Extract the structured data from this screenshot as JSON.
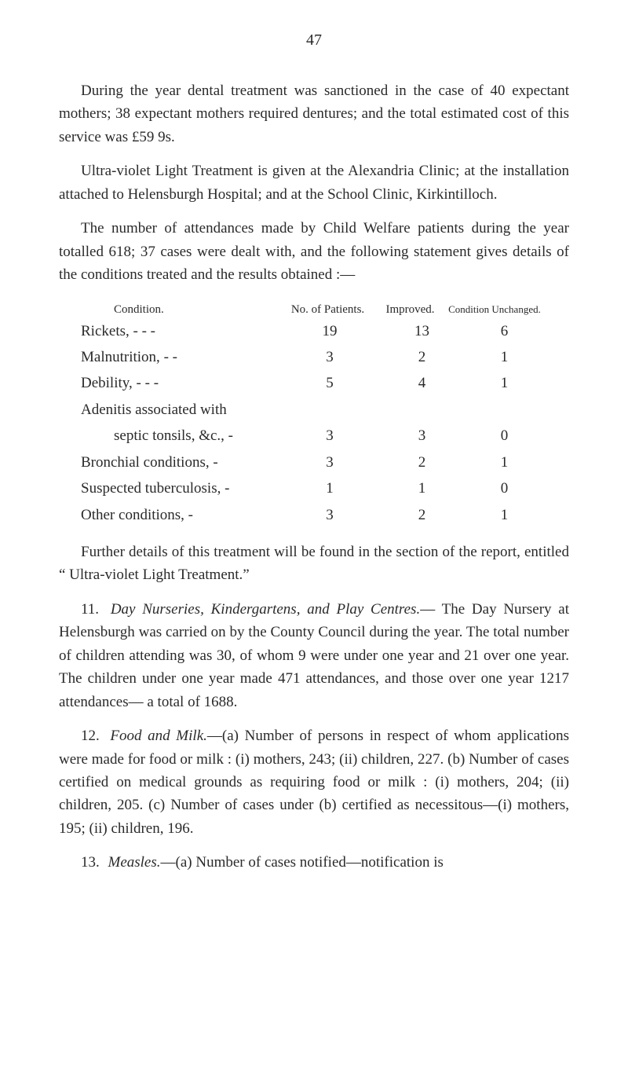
{
  "pageNumber": "47",
  "para1": "During the year dental treatment was sanctioned in the case of 40 expectant mothers; 38 expectant mothers required dentures; and the total estimated cost of this service was £59 9s.",
  "para2": "Ultra-violet Light Treatment is given at the Alexandria Clinic; at the installation attached to Helensburgh Hospital; and at the School Clinic, Kirkintilloch.",
  "para3": "The number of attendances made by Child Welfare patients during the year totalled 618; 37 cases were dealt with, and the following statement gives details of the conditions treated and the results obtained :—",
  "tableHeaders": {
    "condition": "Condition.",
    "patients": "No. of Patients.",
    "improved": "Improved.",
    "unchanged": "Condition Unchanged."
  },
  "tableRows": [
    {
      "label": "Rickets,",
      "dash": "   -    -    -",
      "patients": "19",
      "improved": "13",
      "unchanged": "6",
      "sub": false
    },
    {
      "label": "Malnutrition,",
      "dash": "     -    -",
      "patients": "3",
      "improved": "2",
      "unchanged": "1",
      "sub": false
    },
    {
      "label": "Debility,",
      "dash": "     -    -    -",
      "patients": "5",
      "improved": "4",
      "unchanged": "1",
      "sub": false
    },
    {
      "label": "Adenitis associated with",
      "dash": "",
      "patients": "",
      "improved": "",
      "unchanged": "",
      "sub": false
    },
    {
      "label": "septic tonsils, &c.,   -",
      "dash": "",
      "patients": "3",
      "improved": "3",
      "unchanged": "0",
      "sub": true
    },
    {
      "label": "Bronchial conditions,     -",
      "dash": "",
      "patients": "3",
      "improved": "2",
      "unchanged": "1",
      "sub": false
    },
    {
      "label": "Suspected tuberculosis, -",
      "dash": "",
      "patients": "1",
      "improved": "1",
      "unchanged": "0",
      "sub": false
    },
    {
      "label": "Other conditions,          -",
      "dash": "",
      "patients": "3",
      "improved": "2",
      "unchanged": "1",
      "sub": false
    }
  ],
  "para4": "Further details of this treatment will be found in the section of the report, entitled “ Ultra-violet Light Treatment.”",
  "section11": {
    "num": "11.",
    "title": "Day Nurseries, Kindergartens, and Play Centres.",
    "body": "— The Day Nursery at Helensburgh was carried on by the County Council during the year. The total number of children attending was 30, of whom 9 were under one year and 21 over one year. The children under one year made 471 attendances, and those over one year 1217 attendances— a total of 1688."
  },
  "section12": {
    "num": "12.",
    "title": "Food and Milk.",
    "body": "—(a) Number of persons in respect of whom applications were made for food or milk : (i) mothers, 243; (ii) children, 227. (b) Number of cases certified on medical grounds as requiring food or milk : (i) mothers, 204; (ii) children, 205. (c) Number of cases under (b) certified as necessitous—(i) mothers, 195; (ii) children, 196."
  },
  "section13": {
    "num": "13.",
    "title": "Measles.",
    "body": "—(a) Number of cases notified—notification is"
  }
}
